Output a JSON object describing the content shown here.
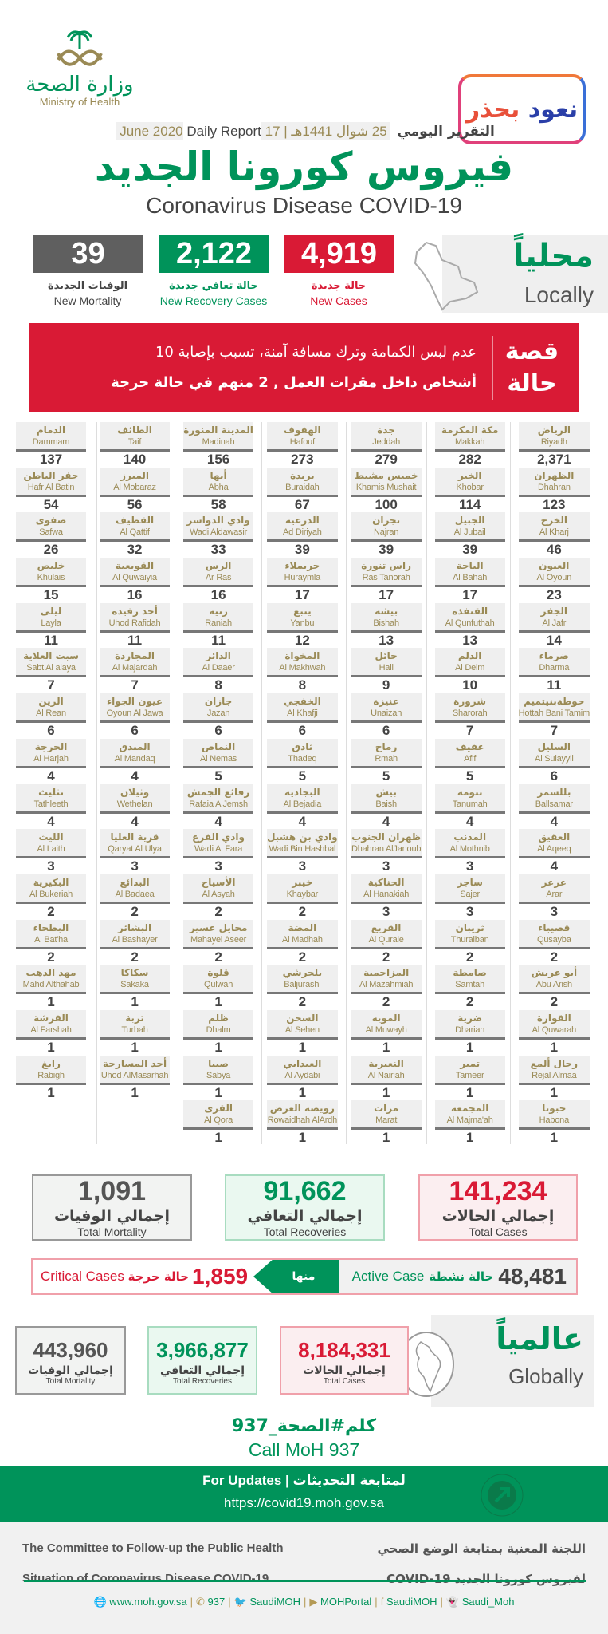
{
  "header": {
    "logo_ar": "وزارة الصحة",
    "logo_en": "Ministry of Health",
    "campaign_part1": "نعود",
    "campaign_part2": "بحذر",
    "daily_report_ar": "التقرير اليومي",
    "date_hijri": "25 شوال 1441هـ",
    "date_greg": "17 June 2020",
    "daily_report_en": "Daily Report",
    "title_ar": "فيروس كورونا الجديد",
    "title_en": "Coronavirus Disease COVID-19"
  },
  "colors": {
    "red": "#d91a35",
    "green": "#00935a",
    "gray": "#5f5f5f",
    "gold": "#9a8a55"
  },
  "locally": {
    "title_ar": "محلياً",
    "title_en": "Locally",
    "new_cases": {
      "value": "4,919",
      "ar": "حالة جديدة",
      "en": "New Cases"
    },
    "new_recoveries": {
      "value": "2,122",
      "ar": "حالة تعافي جديدة",
      "en": "New Recovery Cases"
    },
    "new_mortality": {
      "value": "39",
      "ar": "الوفيات الجديدة",
      "en": "New Mortality"
    }
  },
  "story": {
    "heading": "قصة حالة",
    "line1": "عدم لبس الكمامة وترك مسافة آمنة، تسبب بإصابة 10",
    "line2": "أشخاص داخل مقرات العمل , 2 منهم في حالة حرجة"
  },
  "cities": [
    [
      "الرياض",
      "Riyadh",
      "2,371"
    ],
    [
      "مكة المكرمة",
      "Makkah",
      "282"
    ],
    [
      "جدة",
      "Jeddah",
      "279"
    ],
    [
      "الهفوف",
      "Hafouf",
      "273"
    ],
    [
      "المدينة المنورة",
      "Madinah",
      "156"
    ],
    [
      "الطائف",
      "Taif",
      "140"
    ],
    [
      "الدمام",
      "Dammam",
      "137"
    ],
    [
      "الظهران",
      "Dhahran",
      "123"
    ],
    [
      "الخبر",
      "Khobar",
      "114"
    ],
    [
      "خميس مشيط",
      "Khamis Mushait",
      "100"
    ],
    [
      "بريدة",
      "Buraidah",
      "67"
    ],
    [
      "أبها",
      "Abha",
      "58"
    ],
    [
      "المبرز",
      "Al Mobaraz",
      "56"
    ],
    [
      "حفر الباطن",
      "Hafr Al Batin",
      "54"
    ],
    [
      "الخرج",
      "Al Kharj",
      "46"
    ],
    [
      "الجبيل",
      "Al Jubail",
      "39"
    ],
    [
      "نجران",
      "Najran",
      "39"
    ],
    [
      "الدرعية",
      "Ad Diriyah",
      "39"
    ],
    [
      "وادي الدواسر",
      "Wadi Aldawasir",
      "33"
    ],
    [
      "القطيف",
      "Al Qattif",
      "32"
    ],
    [
      "صفوى",
      "Safwa",
      "26"
    ],
    [
      "العيون",
      "Al Oyoun",
      "23"
    ],
    [
      "الباحة",
      "Al Bahah",
      "17"
    ],
    [
      "راس تنورة",
      "Ras Tanorah",
      "17"
    ],
    [
      "حريملاء",
      "Huraymla",
      "17"
    ],
    [
      "الرس",
      "Ar Ras",
      "16"
    ],
    [
      "القويعية",
      "Al Quwaiyia",
      "16"
    ],
    [
      "خليص",
      "Khulais",
      "15"
    ],
    [
      "الجفر",
      "Al Jafr",
      "14"
    ],
    [
      "القنفذة",
      "Al Qunfuthah",
      "13"
    ],
    [
      "بيشة",
      "Bishah",
      "13"
    ],
    [
      "ينبع",
      "Yanbu",
      "12"
    ],
    [
      "رنية",
      "Raniah",
      "11"
    ],
    [
      "أحد رفيدة",
      "Uhod Rafidah",
      "11"
    ],
    [
      "ليلى",
      "Layla",
      "11"
    ],
    [
      "ضرماء",
      "Dharma",
      "11"
    ],
    [
      "الدلم",
      "Al Delm",
      "10"
    ],
    [
      "حائل",
      "Hail",
      "9"
    ],
    [
      "المخواة",
      "Al Makhwah",
      "8"
    ],
    [
      "الدائر",
      "Al Daaer",
      "8"
    ],
    [
      "المجاردة",
      "Al Majardah",
      "7"
    ],
    [
      "سبت العلاية",
      "Sabt Al alaya",
      "7"
    ],
    [
      "حوطةبنيتميم",
      "Hottah Bani Tamim",
      "7"
    ],
    [
      "شرورة",
      "Sharorah",
      "7"
    ],
    [
      "عنيزة",
      "Unaizah",
      "6"
    ],
    [
      "الخفجي",
      "Al Khafji",
      "6"
    ],
    [
      "جازان",
      "Jazan",
      "6"
    ],
    [
      "عيون الجواء",
      "Oyoun Al Jawa",
      "6"
    ],
    [
      "الرين",
      "Al Rean",
      "6"
    ],
    [
      "السليل",
      "Al Sulayyil",
      "6"
    ],
    [
      "عفيف",
      "Afif",
      "5"
    ],
    [
      "رماح",
      "Rmah",
      "5"
    ],
    [
      "ثادق",
      "Thadeq",
      "5"
    ],
    [
      "النماص",
      "Al Nemas",
      "5"
    ],
    [
      "المندق",
      "Al Mandaq",
      "4"
    ],
    [
      "الحرجة",
      "Al Harjah",
      "4"
    ],
    [
      "بللسمر",
      "Ballsamar",
      "4"
    ],
    [
      "تنومة",
      "Tanumah",
      "4"
    ],
    [
      "بيش",
      "Baish",
      "4"
    ],
    [
      "البجادية",
      "Al Bejadia",
      "4"
    ],
    [
      "رفائع الجمش",
      "Rafaia AlJemsh",
      "4"
    ],
    [
      "وثيلان",
      "Wethelan",
      "4"
    ],
    [
      "تثليث",
      "Tathleeth",
      "4"
    ],
    [
      "العقيق",
      "Al Aqeeq",
      "4"
    ],
    [
      "المذنب",
      "Al Mothnib",
      "3"
    ],
    [
      "ظهران الجنوب",
      "Dhahran AlJanoub",
      "3"
    ],
    [
      "وادي بن هشبل",
      "Wadi Bin Hashbal",
      "3"
    ],
    [
      "وادي الفرع",
      "Wadi Al Fara",
      "3"
    ],
    [
      "قرية العليا",
      "Qaryat Al Ulya",
      "3"
    ],
    [
      "الليث",
      "Al Laith",
      "3"
    ],
    [
      "عرعر",
      "Arar",
      "3"
    ],
    [
      "ساجر",
      "Sajer",
      "3"
    ],
    [
      "الحناكية",
      "Al Hanakiah",
      "3"
    ],
    [
      "خيبر",
      "Khaybar",
      "2"
    ],
    [
      "الأسياح",
      "Al Asyah",
      "2"
    ],
    [
      "البدائع",
      "Al Badaea",
      "2"
    ],
    [
      "البكيرية",
      "Al Bukeriah",
      "2"
    ],
    [
      "قصيباء",
      "Qusayba",
      "2"
    ],
    [
      "ثريبان",
      "Thuraiban",
      "2"
    ],
    [
      "القريع",
      "Al Quraie",
      "2"
    ],
    [
      "المضة",
      "Al Madhah",
      "2"
    ],
    [
      "محايل عسير",
      "Mahayel Aseer",
      "2"
    ],
    [
      "البشائر",
      "Al Bashayer",
      "2"
    ],
    [
      "البطحاء",
      "Al Bat'ha",
      "2"
    ],
    [
      "أبو عريش",
      "Abu Arish",
      "2"
    ],
    [
      "صامطة",
      "Samtah",
      "2"
    ],
    [
      "المزاحمية",
      "Al Mazahmiah",
      "2"
    ],
    [
      "بلجرشي",
      "Baljurashi",
      "2"
    ],
    [
      "قلوة",
      "Qulwah",
      "1"
    ],
    [
      "سكاكا",
      "Sakaka",
      "1"
    ],
    [
      "مهد الذهب",
      "Mahd Althahab",
      "1"
    ],
    [
      "القوارة",
      "Al Quwarah",
      "1"
    ],
    [
      "ضرية",
      "Dhariah",
      "1"
    ],
    [
      "المويه",
      "Al Muwayh",
      "1"
    ],
    [
      "السحن",
      "Al Sehen",
      "1"
    ],
    [
      "ظلم",
      "Dhalm",
      "1"
    ],
    [
      "تربة",
      "Turbah",
      "1"
    ],
    [
      "الفرشة",
      "Al Farshah",
      "1"
    ],
    [
      "رجال ألمع",
      "Rejal Almaa",
      "1"
    ],
    [
      "تمير",
      "Tameer",
      "1"
    ],
    [
      "النعيرية",
      "Al Nairiah",
      "1"
    ],
    [
      "العيدابي",
      "Al Aydabi",
      "1"
    ],
    [
      "صبيا",
      "Sabya",
      "1"
    ],
    [
      "أحد المسارحة",
      "Uhod AlMasarhah",
      "1"
    ],
    [
      "رابغ",
      "Rabigh",
      "1"
    ],
    [
      "حبونا",
      "Habona",
      "1"
    ],
    [
      "المجمعة",
      "Al Majma'ah",
      "1"
    ],
    [
      "مرات",
      "Marat",
      "1"
    ],
    [
      "رويضة العرض",
      "Rowaidhah AlArdh",
      "1"
    ],
    [
      "القرى",
      "Al Qora",
      "1"
    ]
  ],
  "totals": {
    "cases": {
      "value": "141,234",
      "ar": "إجمالي الحالات",
      "en": "Total Cases"
    },
    "recoveries": {
      "value": "91,662",
      "ar": "إجمالي التعافي",
      "en": "Total Recoveries"
    },
    "mortality": {
      "value": "1,091",
      "ar": "إجمالي الوفيات",
      "en": "Total Mortality"
    },
    "active": {
      "value": "48,481",
      "ar": "حالة نشطة",
      "en": "Active Case"
    },
    "of_which": "منها",
    "critical": {
      "value": "1,859",
      "ar": "حالة حرجة",
      "en": "Critical Cases"
    }
  },
  "global": {
    "title_ar": "عالمياً",
    "title_en": "Globally",
    "cases": {
      "value": "8,184,331",
      "ar": "إجمالي الحالات",
      "en": "Total Cases"
    },
    "recoveries": {
      "value": "3,966,877",
      "ar": "إجمالي التعافي",
      "en": "Total Recoveries"
    },
    "mortality": {
      "value": "443,960",
      "ar": "إجمالي الوفيات",
      "en": "Total Mortality"
    }
  },
  "call": {
    "ar": "كلم#الصحة_937",
    "en": "Call MoH 937"
  },
  "updates": {
    "en": "For Updates",
    "ar": "لمتابعة التحديثات",
    "url": "https://covid19.moh.gov.sa"
  },
  "footer": {
    "en1": "The Committee to Follow-up the Public Health",
    "en2": "Situation of Coronavirus Disease COVID-19",
    "ar1": "اللجنة المعنية بمتابعة الوضع الصحي",
    "ar2": "لفيروس كورونا الجديد COVID-19",
    "social": [
      {
        "icon": "globe-icon",
        "label": "www.moh.gov.sa"
      },
      {
        "icon": "phone-icon",
        "label": "937"
      },
      {
        "icon": "twitter-icon",
        "label": "SaudiMOH"
      },
      {
        "icon": "youtube-icon",
        "label": "MOHPortal"
      },
      {
        "icon": "facebook-icon",
        "label": "SaudiMOH"
      },
      {
        "icon": "snapchat-icon",
        "label": "Saudi_Moh"
      }
    ]
  }
}
